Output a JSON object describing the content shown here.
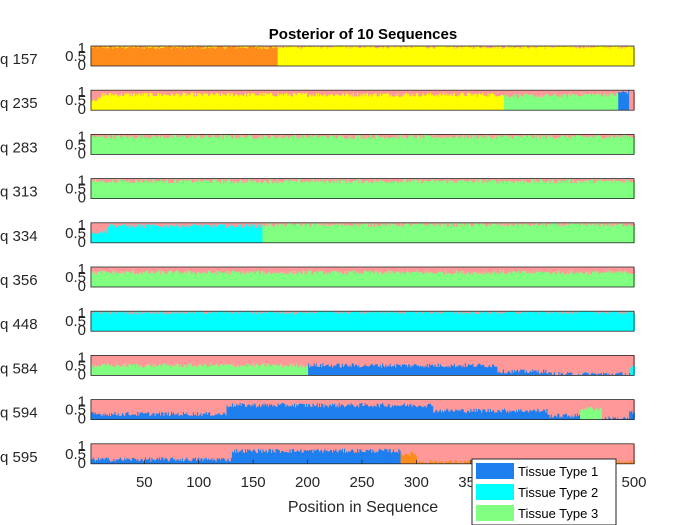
{
  "chart_data": {
    "type": "bar",
    "title": "Posterior of 10 Sequences",
    "xlabel": "Position in Sequence",
    "ylabel": "",
    "xlim": [
      1,
      500
    ],
    "ylim": [
      0,
      1
    ],
    "xticks": [
      "50",
      "100",
      "150",
      "200",
      "250",
      "300",
      "350",
      "400",
      "450",
      "500"
    ],
    "yticks": [
      "0",
      "0.5",
      "1"
    ],
    "stacking": "stacked-proportions",
    "legend": {
      "placement": "bottom-right",
      "entries": [
        {
          "label": "Tissue Type 1",
          "color": "#1e7fef"
        },
        {
          "label": "Tissue Type 2",
          "color": "#00ffff"
        },
        {
          "label": "Tissue Type 3",
          "color": "#80ff80"
        }
      ]
    },
    "component_colors": {
      "type1": "#1e7fef",
      "type2": "#00ffff",
      "type3": "#80ff80",
      "type4": "#ff9999",
      "type5": "#ffff00",
      "type6": "#ff8c1a"
    },
    "rows": [
      {
        "label": "q 157",
        "segments": [
          {
            "x": [
              1,
              172
            ],
            "type6": 0.95,
            "type5": 0.05
          },
          {
            "x": [
              173,
              500
            ],
            "type5": 0.97,
            "type4": 0.03
          }
        ]
      },
      {
        "label": "q 235",
        "segments": [
          {
            "x": [
              1,
              10
            ],
            "type5": 0.55,
            "type4": 0.45
          },
          {
            "x": [
              11,
              380
            ],
            "type5": 0.78,
            "type4": 0.22
          },
          {
            "x": [
              381,
              440
            ],
            "type3": 0.72,
            "type4": 0.28
          },
          {
            "x": [
              441,
              485
            ],
            "type3": 0.78,
            "type4": 0.22
          },
          {
            "x": [
              486,
              495
            ],
            "type1": 0.9,
            "type4": 0.1
          },
          {
            "x": [
              496,
              500
            ],
            "type4": 1.0
          }
        ]
      },
      {
        "label": "q 283",
        "segments": [
          {
            "x": [
              1,
              500
            ],
            "type3": 0.88,
            "type4": 0.12
          }
        ]
      },
      {
        "label": "q 313",
        "segments": [
          {
            "x": [
              1,
              500
            ],
            "type3": 0.87,
            "type4": 0.13
          }
        ]
      },
      {
        "label": "q 334",
        "segments": [
          {
            "x": [
              1,
              15
            ],
            "type2": 0.55,
            "type4": 0.45
          },
          {
            "x": [
              16,
              158
            ],
            "type2": 0.85,
            "type4": 0.15
          },
          {
            "x": [
              159,
              500
            ],
            "type3": 0.9,
            "type4": 0.1
          }
        ]
      },
      {
        "label": "q 356",
        "segments": [
          {
            "x": [
              1,
              500
            ],
            "type3": 0.72,
            "type4": 0.28
          }
        ]
      },
      {
        "label": "q 448",
        "segments": [
          {
            "x": [
              1,
              500
            ],
            "type2": 0.95,
            "type4": 0.05
          }
        ]
      },
      {
        "label": "q 584",
        "segments": [
          {
            "x": [
              1,
              200
            ],
            "type3": 0.5,
            "type4": 0.5
          },
          {
            "x": [
              201,
              374
            ],
            "type1": 0.5,
            "type4": 0.5
          },
          {
            "x": [
              375,
              420
            ],
            "type1": 0.2,
            "type4": 0.8
          },
          {
            "x": [
              421,
              496
            ],
            "type1": 0.07,
            "type4": 0.93
          },
          {
            "x": [
              497,
              500
            ],
            "type2": 0.4,
            "type4": 0.6
          }
        ]
      },
      {
        "label": "q 594",
        "segments": [
          {
            "x": [
              1,
              125
            ],
            "type1": 0.28,
            "type4": 0.72
          },
          {
            "x": [
              126,
              315
            ],
            "type1": 0.72,
            "type4": 0.28
          },
          {
            "x": [
              316,
              420
            ],
            "type1": 0.45,
            "type4": 0.55
          },
          {
            "x": [
              421,
              450
            ],
            "type1": 0.2,
            "type4": 0.8
          },
          {
            "x": [
              451,
              470
            ],
            "type3": 0.55,
            "type4": 0.45
          },
          {
            "x": [
              471,
              495
            ],
            "type1": 0.06,
            "type4": 0.94
          },
          {
            "x": [
              496,
              500
            ],
            "type1": 0.35,
            "type4": 0.65
          }
        ]
      },
      {
        "label": "q 595",
        "segments": [
          {
            "x": [
              1,
              130
            ],
            "type1": 0.22,
            "type4": 0.78
          },
          {
            "x": [
              131,
              285
            ],
            "type1": 0.65,
            "type4": 0.35
          },
          {
            "x": [
              286,
              300
            ],
            "type6": 0.5,
            "type4": 0.5
          },
          {
            "x": [
              301,
              500
            ],
            "type6": 0.1,
            "type4": 0.9
          }
        ]
      }
    ]
  }
}
